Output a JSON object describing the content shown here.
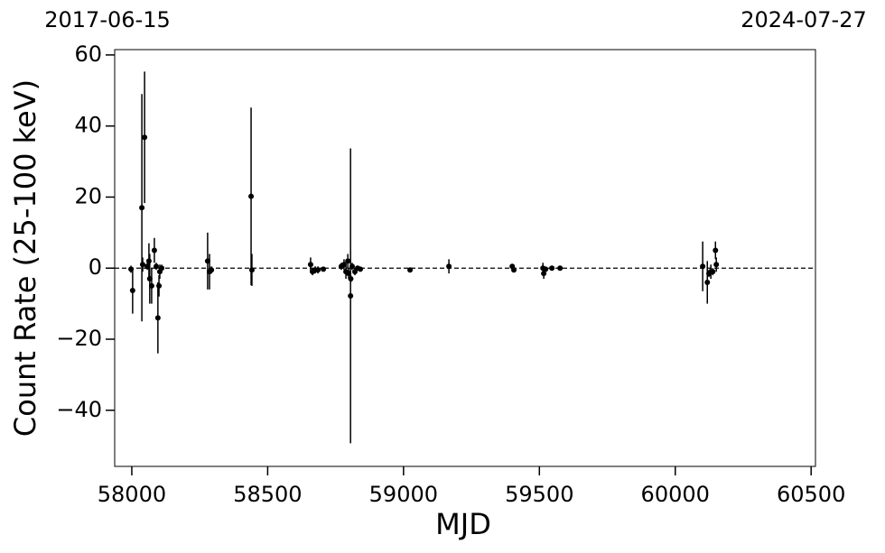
{
  "chart_data": {
    "type": "scatter",
    "top_labels": [
      "2017-06-15",
      "2024-07-27"
    ],
    "x_label": "MJD",
    "y_label": "Count Rate (25-100 keV)",
    "color": "#000000",
    "x": [
      57997,
      58003,
      58037,
      58047,
      58040,
      58057,
      58063,
      58066,
      58073,
      58083,
      58090,
      58096,
      58100,
      58103,
      58110,
      58279,
      58286,
      58293,
      58439,
      58442,
      58658,
      58665,
      58675,
      58685,
      58705,
      58771,
      58781,
      58788,
      58795,
      58798,
      58805,
      58806,
      58811,
      58821,
      58831,
      58841,
      59024,
      59167,
      59400,
      59406,
      59513,
      59516,
      59523,
      59546,
      59576,
      60101,
      60118,
      60124,
      60131,
      60138,
      60148,
      60151
    ],
    "values": [
      -0.3,
      -6.3,
      17,
      36.8,
      1,
      0.5,
      2,
      -3,
      -5,
      5,
      0.5,
      -14,
      -5,
      -1,
      0,
      2,
      -1,
      -0.5,
      20.2,
      -0.5,
      1,
      -1,
      -0.5,
      -0.5,
      -0.3,
      0.5,
      1,
      -1,
      2,
      -1.5,
      -7.8,
      -3,
      0.5,
      -1,
      0,
      -0.3,
      -0.5,
      0.5,
      0.5,
      -0.5,
      0,
      -1.5,
      -0.3,
      0,
      0,
      0.5,
      -4,
      -1.5,
      -1,
      -1,
      5,
      1
    ],
    "errors": [
      1,
      6.5,
      32,
      18.5,
      2,
      1,
      5,
      7,
      5,
      3.5,
      1,
      10,
      3,
      2,
      1,
      8,
      5,
      1,
      25,
      4.5,
      2,
      1,
      1,
      1,
      0.5,
      1,
      1.5,
      2,
      2,
      1.5,
      41.5,
      1,
      1,
      1,
      0.5,
      0.5,
      0.5,
      2,
      0.5,
      0.5,
      1.5,
      1.5,
      0.5,
      0.5,
      0.5,
      7,
      6,
      1,
      2,
      1,
      2.5,
      2
    ],
    "hline": 0,
    "xlim": [
      57937,
      60516
    ],
    "ylim": [
      -55.8,
      61.5
    ],
    "xticks": [
      58000,
      58500,
      59000,
      59500,
      60000,
      60500
    ],
    "yticks": [
      {
        "value": -40,
        "label": "−40"
      },
      {
        "value": -20,
        "label": "−20"
      },
      0,
      20,
      40,
      60
    ]
  }
}
